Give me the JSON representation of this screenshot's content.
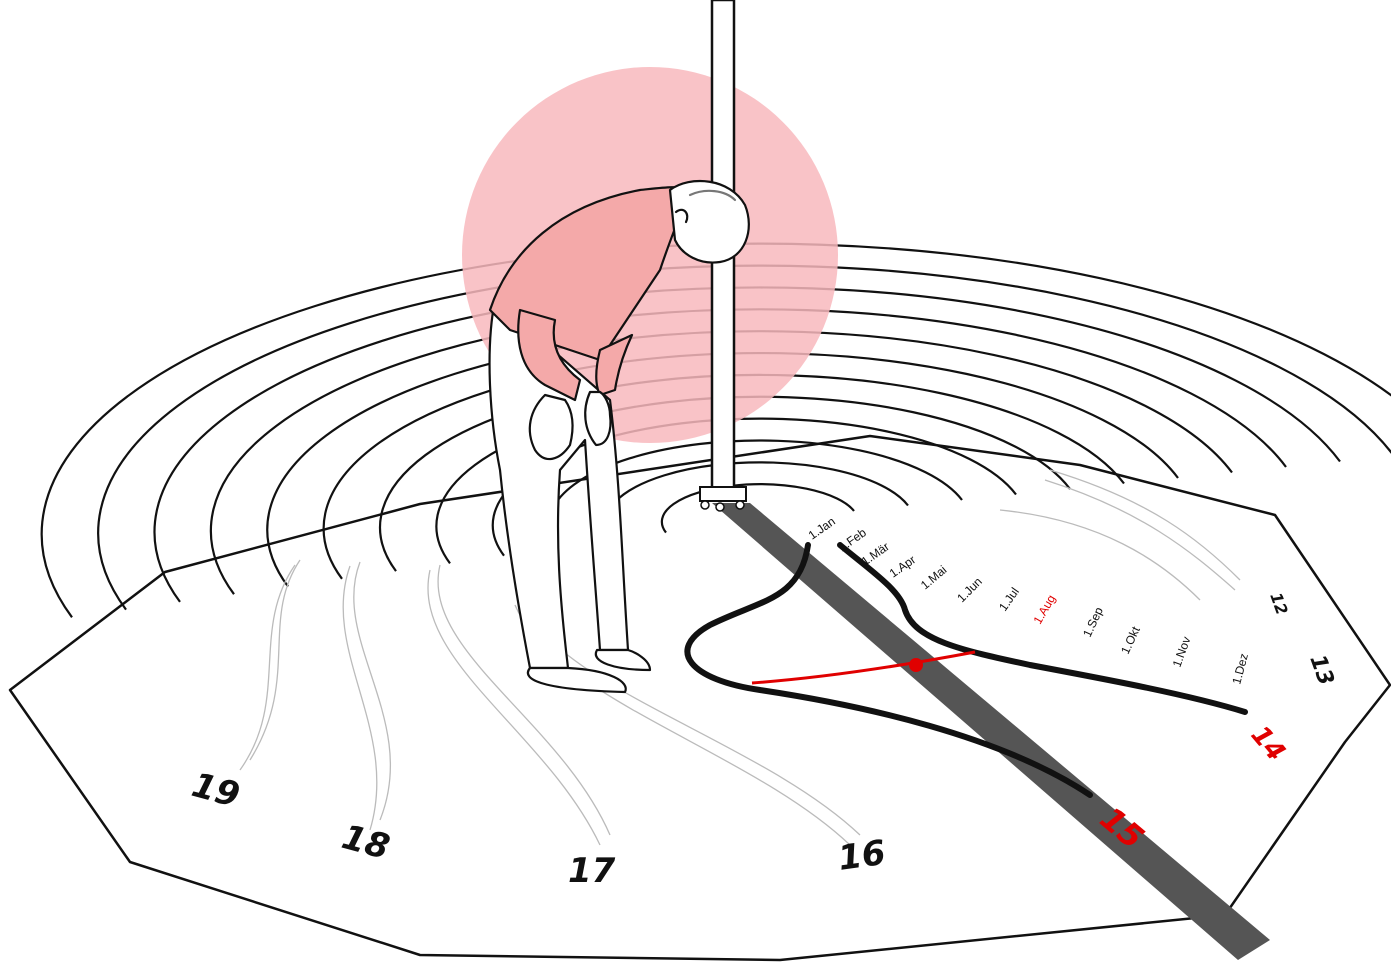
{
  "hours": [
    {
      "label": "19",
      "color": "#111111"
    },
    {
      "label": "18",
      "color": "#111111"
    },
    {
      "label": "17",
      "color": "#111111"
    },
    {
      "label": "16",
      "color": "#111111"
    },
    {
      "label": "15",
      "color": "#e00000"
    },
    {
      "label": "14",
      "color": "#e00000"
    },
    {
      "label": "13",
      "color": "#111111"
    },
    {
      "label": "12",
      "color": "#111111"
    }
  ],
  "months": [
    {
      "label": "1.Jan",
      "color": "#111111"
    },
    {
      "label": "1.Feb",
      "color": "#111111"
    },
    {
      "label": "1.Mär",
      "color": "#111111"
    },
    {
      "label": "1.Apr",
      "color": "#111111"
    },
    {
      "label": "1.Mai",
      "color": "#111111"
    },
    {
      "label": "1.Jun",
      "color": "#111111"
    },
    {
      "label": "1.Jul",
      "color": "#111111"
    },
    {
      "label": "1.Aug",
      "color": "#e00000"
    },
    {
      "label": "1.Sep",
      "color": "#111111"
    },
    {
      "label": "1.Okt",
      "color": "#111111"
    },
    {
      "label": "1.Nov",
      "color": "#111111"
    },
    {
      "label": "1.Dez",
      "color": "#111111"
    }
  ],
  "colors": {
    "accent": "#e00000",
    "head_circle": "#f8b9bd",
    "shadow": "#555555",
    "line": "#111111",
    "faint_line": "#bbbbbb"
  },
  "icons": {
    "person": "person-bending-over-icon",
    "gnomon": "pole-gnomon-icon"
  }
}
